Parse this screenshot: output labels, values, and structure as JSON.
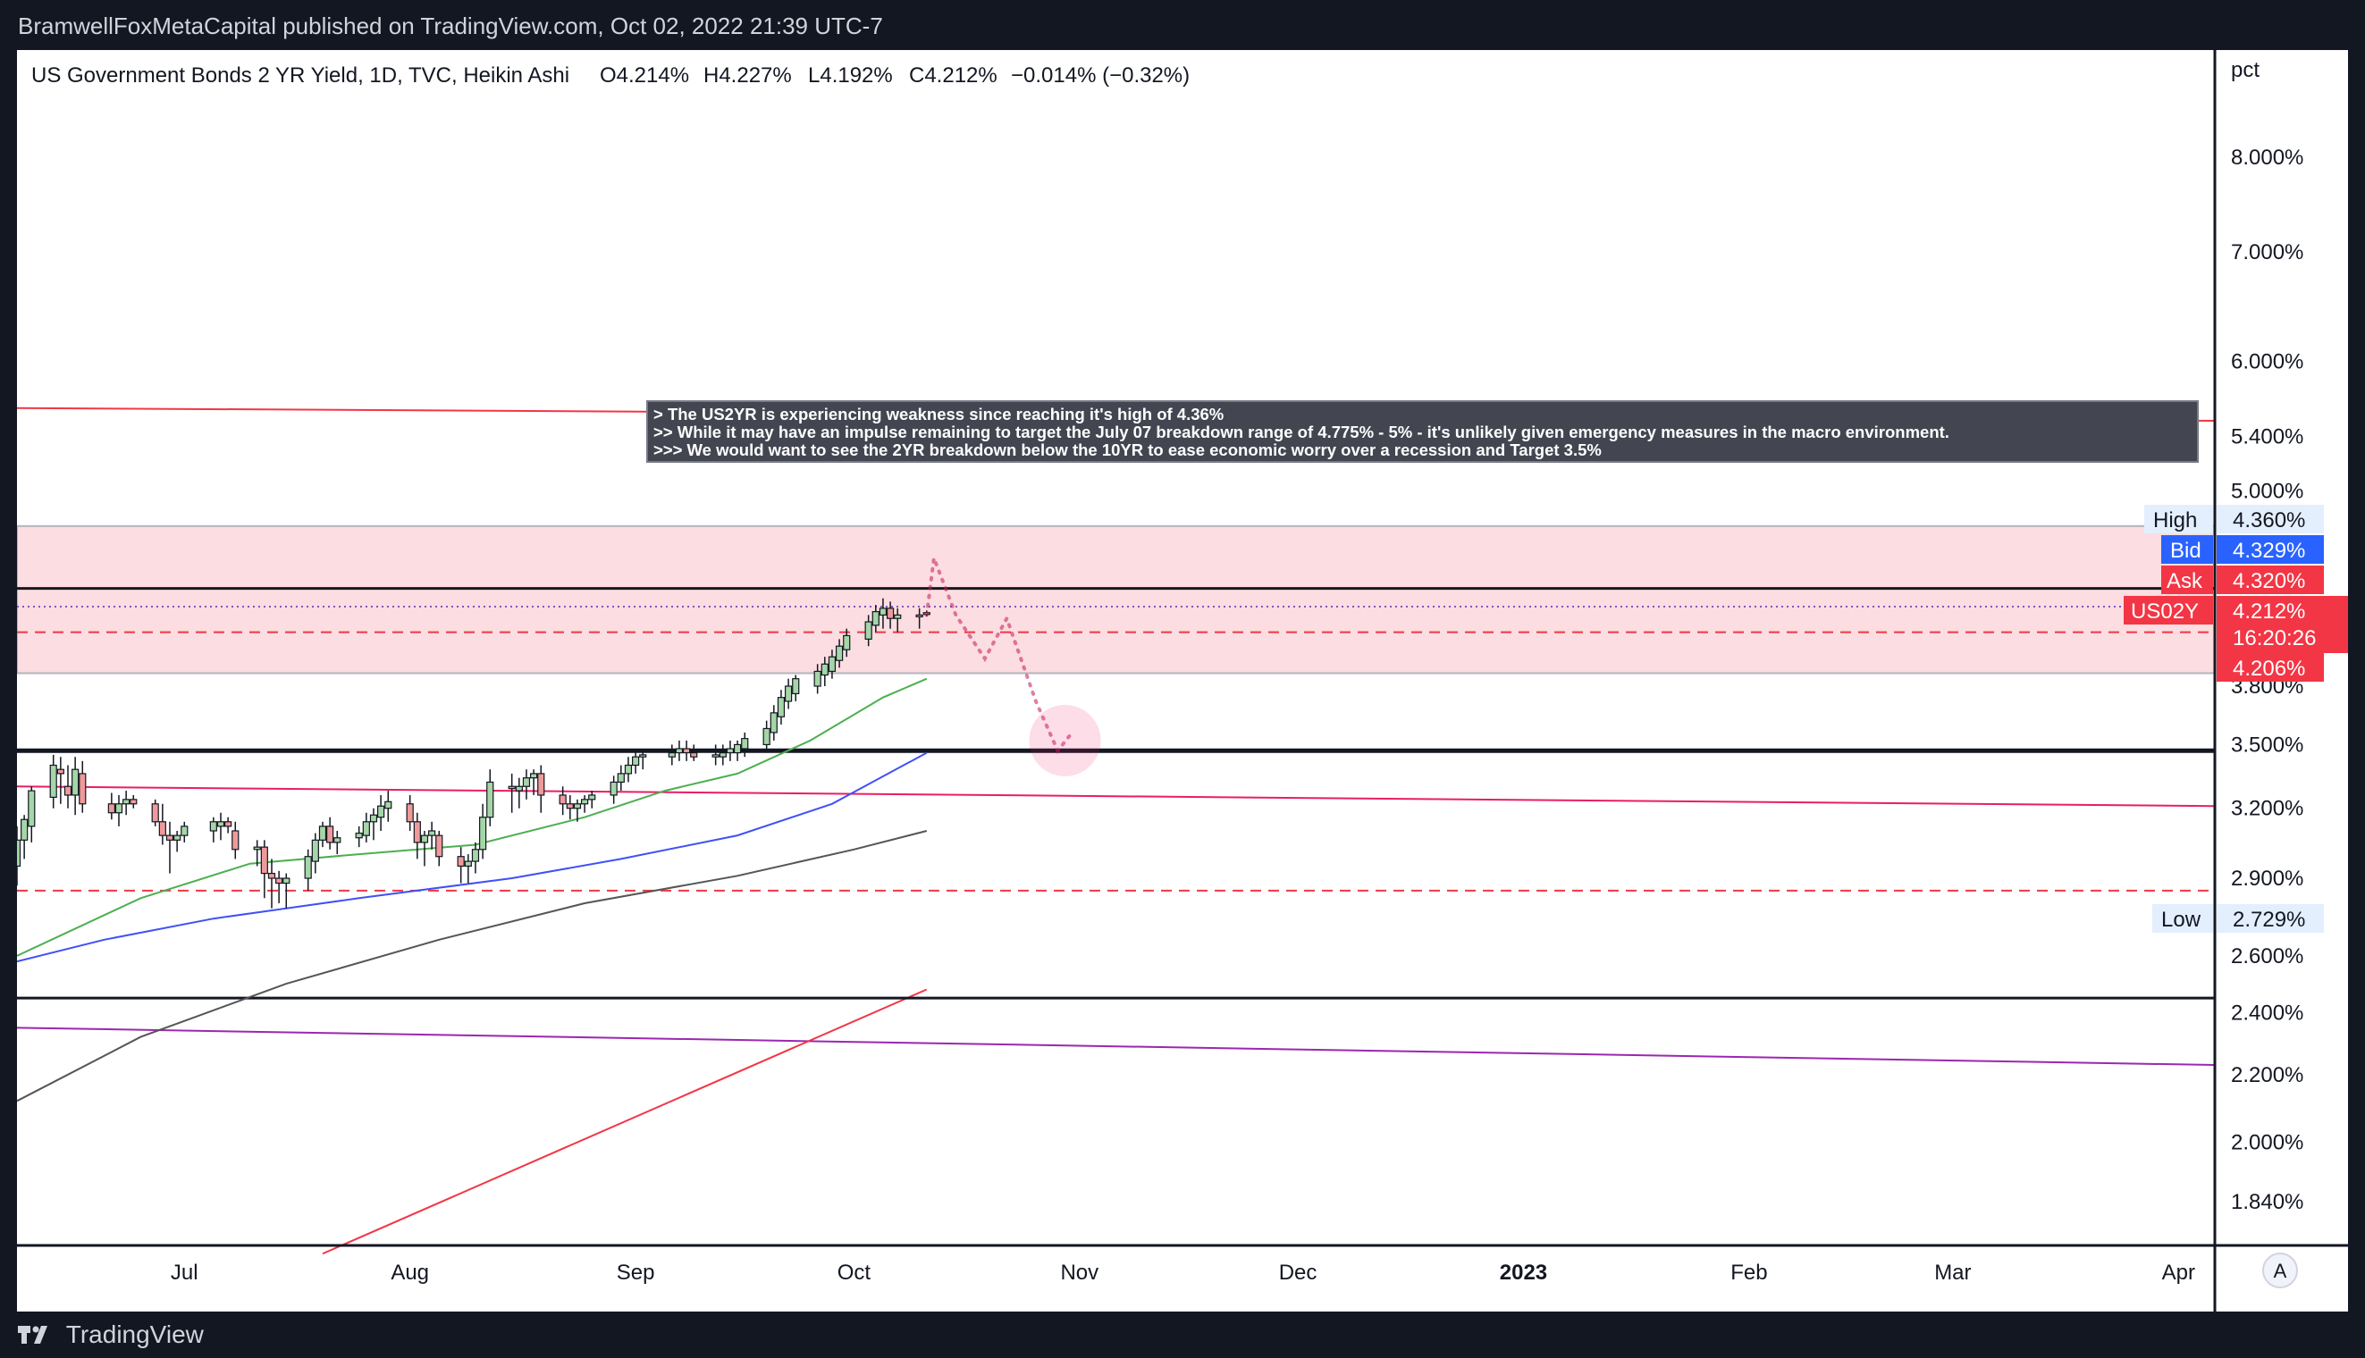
{
  "header": {
    "publisher_line": "BramwellFoxMetaCapital published on TradingView.com, Oct 02, 2022 21:39 UTC-7"
  },
  "footer": {
    "brand": "TradingView"
  },
  "legend": {
    "title": "US Government Bonds 2 YR Yield, 1D, TVC, Heikin Ashi",
    "open": "O4.214%",
    "high": "H4.227%",
    "low": "L4.192%",
    "close": "C4.212%",
    "change": "−0.014% (−0.32%)"
  },
  "annotation": {
    "line1": "> The US2YR is experiencing weakness since reaching it's high of 4.36%",
    "line2": ">> While it may have an impulse remaining to target the July 07 breakdown range of 4.775% - 5% - it's unlikely given emergency measures in the macro environment.",
    "line3": ">>> We would want to see the 2YR breakdown below the 10YR to ease economic worry over a recession and Target 3.5%"
  },
  "price_axis": {
    "unit": "pct",
    "scale_button": "A",
    "tags": {
      "high_label": "High",
      "high_value": "4.360%",
      "bid_label": "Bid",
      "bid_value": "4.329%",
      "ask_label": "Ask",
      "ask_value": "4.320%",
      "symbol_label": "US02Y",
      "last_value": "4.212%",
      "countdown": "16:20:26",
      "prev_value": "4.206%",
      "low_label": "Low",
      "low_value": "2.729%"
    }
  },
  "colors": {
    "background": "#ffffff",
    "frame": "#131722",
    "up_candle": "#a5d6a7",
    "down_candle": "#ef9a9a",
    "zone_fill": "#fcdde1",
    "ma_fast": "#4caf50",
    "ma_mid": "#3f51f5",
    "ma_slow": "#555555",
    "trend_red": "#f23645",
    "trend_purple": "#9c27b0",
    "trend_pink": "#e91e63",
    "bid": "#2962ff",
    "ask": "#f23645"
  },
  "chart_data": {
    "type": "candlestick",
    "title": "US Government Bonds 2 YR Yield, 1D, TVC, Heikin Ashi",
    "ylabel": "pct",
    "scale": "log",
    "ylim": [
      1.73,
      9.3
    ],
    "y_ticks": [
      "8.000%",
      "7.000%",
      "6.000%",
      "5.400%",
      "5.000%",
      "3.800%",
      "3.500%",
      "3.200%",
      "2.900%",
      "2.600%",
      "2.400%",
      "2.200%",
      "2.000%",
      "1.840%"
    ],
    "x_ticks": [
      "Jul",
      "Aug",
      "Sep",
      "Oct",
      "Nov",
      "Dec",
      "2023",
      "Feb",
      "Mar",
      "Apr"
    ],
    "x_range": [
      "2022-06-08",
      "2023-04-06"
    ],
    "candles": [
      {
        "d": "2022-06-08",
        "o": 2.95,
        "h": 3.12,
        "l": 2.87,
        "c": 3.06
      },
      {
        "d": "2022-06-09",
        "o": 3.06,
        "h": 3.17,
        "l": 2.98,
        "c": 3.15
      },
      {
        "d": "2022-06-10",
        "o": 3.12,
        "h": 3.3,
        "l": 3.05,
        "c": 3.28
      },
      {
        "d": "2022-06-13",
        "o": 3.25,
        "h": 3.45,
        "l": 3.2,
        "c": 3.4
      },
      {
        "d": "2022-06-14",
        "o": 3.38,
        "h": 3.44,
        "l": 3.22,
        "c": 3.36
      },
      {
        "d": "2022-06-15",
        "o": 3.3,
        "h": 3.4,
        "l": 3.2,
        "c": 3.26
      },
      {
        "d": "2022-06-16",
        "o": 3.26,
        "h": 3.44,
        "l": 3.17,
        "c": 3.38
      },
      {
        "d": "2022-06-17",
        "o": 3.36,
        "h": 3.42,
        "l": 3.18,
        "c": 3.22
      },
      {
        "d": "2022-06-21",
        "o": 3.22,
        "h": 3.27,
        "l": 3.15,
        "c": 3.18
      },
      {
        "d": "2022-06-22",
        "o": 3.18,
        "h": 3.26,
        "l": 3.12,
        "c": 3.22
      },
      {
        "d": "2022-06-23",
        "o": 3.22,
        "h": 3.28,
        "l": 3.17,
        "c": 3.24
      },
      {
        "d": "2022-06-24",
        "o": 3.24,
        "h": 3.26,
        "l": 3.2,
        "c": 3.22
      },
      {
        "d": "2022-06-27",
        "o": 3.22,
        "h": 3.24,
        "l": 3.12,
        "c": 3.14
      },
      {
        "d": "2022-06-28",
        "o": 3.14,
        "h": 3.22,
        "l": 3.04,
        "c": 3.08
      },
      {
        "d": "2022-06-29",
        "o": 3.08,
        "h": 3.14,
        "l": 2.92,
        "c": 3.06
      },
      {
        "d": "2022-06-30",
        "o": 3.06,
        "h": 3.1,
        "l": 3.01,
        "c": 3.08
      },
      {
        "d": "2022-07-01",
        "o": 3.08,
        "h": 3.14,
        "l": 3.05,
        "c": 3.12
      },
      {
        "d": "2022-07-05",
        "o": 3.1,
        "h": 3.16,
        "l": 3.05,
        "c": 3.14
      },
      {
        "d": "2022-07-06",
        "o": 3.12,
        "h": 3.18,
        "l": 3.06,
        "c": 3.14
      },
      {
        "d": "2022-07-07",
        "o": 3.14,
        "h": 3.16,
        "l": 3.09,
        "c": 3.12
      },
      {
        "d": "2022-07-08",
        "o": 3.1,
        "h": 3.14,
        "l": 2.98,
        "c": 3.02
      },
      {
        "d": "2022-07-11",
        "o": 3.02,
        "h": 3.06,
        "l": 2.95,
        "c": 3.03
      },
      {
        "d": "2022-07-12",
        "o": 3.03,
        "h": 3.06,
        "l": 2.82,
        "c": 2.92
      },
      {
        "d": "2022-07-13",
        "o": 2.92,
        "h": 2.98,
        "l": 2.78,
        "c": 2.9
      },
      {
        "d": "2022-07-14",
        "o": 2.9,
        "h": 2.93,
        "l": 2.8,
        "c": 2.88
      },
      {
        "d": "2022-07-15",
        "o": 2.88,
        "h": 2.92,
        "l": 2.78,
        "c": 2.9
      },
      {
        "d": "2022-07-18",
        "o": 2.9,
        "h": 3.02,
        "l": 2.85,
        "c": 2.99
      },
      {
        "d": "2022-07-19",
        "o": 2.97,
        "h": 3.09,
        "l": 2.92,
        "c": 3.06
      },
      {
        "d": "2022-07-20",
        "o": 3.06,
        "h": 3.14,
        "l": 3.03,
        "c": 3.12
      },
      {
        "d": "2022-07-21",
        "o": 3.12,
        "h": 3.16,
        "l": 3.02,
        "c": 3.05
      },
      {
        "d": "2022-07-22",
        "o": 3.05,
        "h": 3.1,
        "l": 3.0,
        "c": 3.07
      },
      {
        "d": "2022-07-25",
        "o": 3.07,
        "h": 3.12,
        "l": 3.03,
        "c": 3.09
      },
      {
        "d": "2022-07-26",
        "o": 3.08,
        "h": 3.18,
        "l": 3.05,
        "c": 3.14
      },
      {
        "d": "2022-07-27",
        "o": 3.14,
        "h": 3.2,
        "l": 3.06,
        "c": 3.17
      },
      {
        "d": "2022-07-28",
        "o": 3.16,
        "h": 3.26,
        "l": 3.1,
        "c": 3.21
      },
      {
        "d": "2022-07-29",
        "o": 3.2,
        "h": 3.28,
        "l": 3.14,
        "c": 3.23
      },
      {
        "d": "2022-08-01",
        "o": 3.22,
        "h": 3.26,
        "l": 3.1,
        "c": 3.14
      },
      {
        "d": "2022-08-02",
        "o": 3.14,
        "h": 3.18,
        "l": 2.98,
        "c": 3.05
      },
      {
        "d": "2022-08-03",
        "o": 3.05,
        "h": 3.1,
        "l": 2.95,
        "c": 3.08
      },
      {
        "d": "2022-08-04",
        "o": 3.08,
        "h": 3.14,
        "l": 3.02,
        "c": 3.1
      },
      {
        "d": "2022-08-05",
        "o": 3.08,
        "h": 3.1,
        "l": 2.95,
        "c": 2.99
      },
      {
        "d": "2022-08-08",
        "o": 2.99,
        "h": 3.03,
        "l": 2.88,
        "c": 2.95
      },
      {
        "d": "2022-08-09",
        "o": 2.95,
        "h": 3.0,
        "l": 2.88,
        "c": 2.97
      },
      {
        "d": "2022-08-10",
        "o": 2.97,
        "h": 3.05,
        "l": 2.92,
        "c": 3.02
      },
      {
        "d": "2022-08-11",
        "o": 3.02,
        "h": 3.22,
        "l": 2.98,
        "c": 3.16
      },
      {
        "d": "2022-08-12",
        "o": 3.16,
        "h": 3.38,
        "l": 3.12,
        "c": 3.32
      },
      {
        "d": "2022-08-15",
        "o": 3.3,
        "h": 3.36,
        "l": 3.18,
        "c": 3.29
      },
      {
        "d": "2022-08-16",
        "o": 3.28,
        "h": 3.34,
        "l": 3.2,
        "c": 3.3
      },
      {
        "d": "2022-08-17",
        "o": 3.3,
        "h": 3.38,
        "l": 3.24,
        "c": 3.34
      },
      {
        "d": "2022-08-18",
        "o": 3.34,
        "h": 3.38,
        "l": 3.26,
        "c": 3.36
      },
      {
        "d": "2022-08-19",
        "o": 3.36,
        "h": 3.4,
        "l": 3.18,
        "c": 3.26
      },
      {
        "d": "2022-08-22",
        "o": 3.26,
        "h": 3.3,
        "l": 3.17,
        "c": 3.22
      },
      {
        "d": "2022-08-23",
        "o": 3.22,
        "h": 3.26,
        "l": 3.15,
        "c": 3.2
      },
      {
        "d": "2022-08-24",
        "o": 3.2,
        "h": 3.24,
        "l": 3.14,
        "c": 3.22
      },
      {
        "d": "2022-08-25",
        "o": 3.22,
        "h": 3.26,
        "l": 3.18,
        "c": 3.24
      },
      {
        "d": "2022-08-26",
        "o": 3.24,
        "h": 3.28,
        "l": 3.2,
        "c": 3.26
      },
      {
        "d": "2022-08-29",
        "o": 3.26,
        "h": 3.35,
        "l": 3.22,
        "c": 3.32
      },
      {
        "d": "2022-08-30",
        "o": 3.32,
        "h": 3.4,
        "l": 3.28,
        "c": 3.36
      },
      {
        "d": "2022-08-31",
        "o": 3.36,
        "h": 3.44,
        "l": 3.32,
        "c": 3.4
      },
      {
        "d": "2022-09-01",
        "o": 3.4,
        "h": 3.46,
        "l": 3.36,
        "c": 3.44
      },
      {
        "d": "2022-09-02",
        "o": 3.44,
        "h": 3.48,
        "l": 3.38,
        "c": 3.45
      },
      {
        "d": "2022-09-06",
        "o": 3.44,
        "h": 3.5,
        "l": 3.4,
        "c": 3.46
      },
      {
        "d": "2022-09-07",
        "o": 3.46,
        "h": 3.52,
        "l": 3.42,
        "c": 3.48
      },
      {
        "d": "2022-09-08",
        "o": 3.48,
        "h": 3.52,
        "l": 3.42,
        "c": 3.46
      },
      {
        "d": "2022-09-09",
        "o": 3.46,
        "h": 3.5,
        "l": 3.42,
        "c": 3.44
      },
      {
        "d": "2022-09-12",
        "o": 3.44,
        "h": 3.5,
        "l": 3.4,
        "c": 3.45
      },
      {
        "d": "2022-09-13",
        "o": 3.44,
        "h": 3.5,
        "l": 3.4,
        "c": 3.46
      },
      {
        "d": "2022-09-14",
        "o": 3.46,
        "h": 3.52,
        "l": 3.42,
        "c": 3.48
      },
      {
        "d": "2022-09-15",
        "o": 3.46,
        "h": 3.52,
        "l": 3.42,
        "c": 3.5
      },
      {
        "d": "2022-09-16",
        "o": 3.48,
        "h": 3.56,
        "l": 3.44,
        "c": 3.53
      },
      {
        "d": "2022-09-19",
        "o": 3.5,
        "h": 3.62,
        "l": 3.46,
        "c": 3.58
      },
      {
        "d": "2022-09-20",
        "o": 3.56,
        "h": 3.7,
        "l": 3.52,
        "c": 3.66
      },
      {
        "d": "2022-09-21",
        "o": 3.64,
        "h": 3.78,
        "l": 3.6,
        "c": 3.74
      },
      {
        "d": "2022-09-22",
        "o": 3.72,
        "h": 3.84,
        "l": 3.68,
        "c": 3.8
      },
      {
        "d": "2022-09-23",
        "o": 3.76,
        "h": 3.86,
        "l": 3.72,
        "c": 3.84
      },
      {
        "d": "2022-09-26",
        "o": 3.8,
        "h": 3.92,
        "l": 3.76,
        "c": 3.88
      },
      {
        "d": "2022-09-27",
        "o": 3.86,
        "h": 3.96,
        "l": 3.8,
        "c": 3.92
      },
      {
        "d": "2022-09-28",
        "o": 3.88,
        "h": 4.0,
        "l": 3.84,
        "c": 3.96
      },
      {
        "d": "2022-09-29",
        "o": 3.94,
        "h": 4.06,
        "l": 3.9,
        "c": 4.02
      },
      {
        "d": "2022-09-30",
        "o": 4.0,
        "h": 4.12,
        "l": 3.96,
        "c": 4.08
      },
      {
        "d": "2022-10-03",
        "o": 4.06,
        "h": 4.2,
        "l": 4.02,
        "c": 4.16
      },
      {
        "d": "2022-10-04",
        "o": 4.14,
        "h": 4.26,
        "l": 4.1,
        "c": 4.22
      },
      {
        "d": "2022-10-05",
        "o": 4.2,
        "h": 4.3,
        "l": 4.12,
        "c": 4.24
      },
      {
        "d": "2022-10-06",
        "o": 4.24,
        "h": 4.28,
        "l": 4.12,
        "c": 4.18
      },
      {
        "d": "2022-10-07",
        "o": 4.18,
        "h": 4.24,
        "l": 4.1,
        "c": 4.2
      },
      {
        "d": "2022-10-10",
        "o": 4.2,
        "h": 4.24,
        "l": 4.12,
        "c": 4.19
      },
      {
        "d": "2022-10-11",
        "o": 4.214,
        "h": 4.227,
        "l": 4.192,
        "c": 4.212
      }
    ],
    "moving_averages": [
      {
        "points": [
          [
            "2022-06-08",
            2.6
          ],
          [
            "2022-06-25",
            2.82
          ],
          [
            "2022-07-10",
            2.96
          ],
          [
            "2022-07-25",
            3.0
          ],
          [
            "2022-08-10",
            3.04
          ],
          [
            "2022-08-25",
            3.16
          ],
          [
            "2022-09-05",
            3.28
          ],
          [
            "2022-09-15",
            3.36
          ],
          [
            "2022-09-25",
            3.52
          ],
          [
            "2022-10-05",
            3.74
          ],
          [
            "2022-10-11",
            3.84
          ]
        ]
      },
      {
        "points": [
          [
            "2022-06-08",
            2.58
          ],
          [
            "2022-06-20",
            2.66
          ],
          [
            "2022-07-05",
            2.74
          ],
          [
            "2022-07-25",
            2.82
          ],
          [
            "2022-08-15",
            2.9
          ],
          [
            "2022-08-30",
            2.98
          ],
          [
            "2022-09-15",
            3.08
          ],
          [
            "2022-09-28",
            3.22
          ],
          [
            "2022-10-11",
            3.46
          ]
        ]
      },
      {
        "points": [
          [
            "2022-06-08",
            2.12
          ],
          [
            "2022-06-25",
            2.32
          ],
          [
            "2022-07-15",
            2.5
          ],
          [
            "2022-08-05",
            2.66
          ],
          [
            "2022-08-25",
            2.8
          ],
          [
            "2022-09-15",
            2.91
          ],
          [
            "2022-10-01",
            3.02
          ],
          [
            "2022-10-11",
            3.1
          ]
        ]
      }
    ],
    "horizontal_levels": [
      {
        "y": 4.36,
        "style": "solid-black"
      },
      {
        "y": 3.47,
        "style": "solid-black-thick"
      },
      {
        "y": 2.45,
        "style": "solid-black"
      },
      {
        "y": 4.1,
        "style": "dashed-red"
      },
      {
        "y": 2.85,
        "style": "dashed-red"
      },
      {
        "y": 4.25,
        "style": "dotted-blue"
      }
    ],
    "zone": {
      "y_from": 3.87,
      "y_to": 4.76
    },
    "trend_lines": [
      {
        "from": [
          "2022-06-08",
          5.62
        ],
        "to": [
          "2023-04-06",
          5.52
        ],
        "color": "red"
      },
      {
        "from": [
          "2022-06-08",
          3.3
        ],
        "to": [
          "2023-04-06",
          3.21
        ],
        "color": "pink"
      },
      {
        "from": [
          "2022-06-08",
          2.35
        ],
        "to": [
          "2023-04-06",
          2.23
        ],
        "color": "purple"
      },
      {
        "from": [
          "2022-07-20",
          1.71
        ],
        "to": [
          "2022-10-11",
          2.48
        ],
        "color": "red"
      }
    ],
    "projection": [
      [
        "2022-10-11",
        4.2
      ],
      [
        "2022-10-12",
        4.55
      ],
      [
        "2022-10-15",
        4.2
      ],
      [
        "2022-10-19",
        3.95
      ],
      [
        "2022-10-22",
        4.18
      ],
      [
        "2022-10-26",
        3.72
      ],
      [
        "2022-10-29",
        3.47
      ],
      [
        "2022-10-31",
        3.56
      ]
    ],
    "target_circle": {
      "d": "2022-10-30",
      "y": 3.52
    }
  }
}
